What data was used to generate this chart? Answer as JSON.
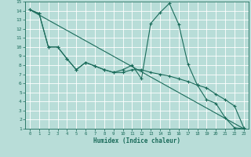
{
  "xlabel": "Humidex (Indice chaleur)",
  "xlim": [
    -0.5,
    23.5
  ],
  "ylim": [
    1,
    15
  ],
  "xticks": [
    0,
    1,
    2,
    3,
    4,
    5,
    6,
    7,
    8,
    9,
    10,
    11,
    12,
    13,
    14,
    15,
    16,
    17,
    18,
    19,
    20,
    21,
    22,
    23
  ],
  "yticks": [
    1,
    2,
    3,
    4,
    5,
    6,
    7,
    8,
    9,
    10,
    11,
    12,
    13,
    14,
    15
  ],
  "bg_color": "#b8ddd8",
  "line_color": "#1a6b5a",
  "grid_color": "#ffffff",
  "line1_x": [
    0,
    1,
    2,
    3,
    4,
    5,
    6,
    7,
    8,
    9,
    10,
    11,
    12,
    13,
    14,
    15,
    16,
    17,
    18,
    19,
    20,
    21,
    22,
    23
  ],
  "line1_y": [
    14.1,
    13.7,
    10.0,
    10.0,
    8.7,
    7.5,
    8.3,
    7.9,
    7.5,
    7.2,
    7.5,
    8.0,
    6.5,
    12.6,
    13.8,
    14.8,
    12.5,
    8.1,
    5.8,
    4.2,
    3.8,
    2.2,
    1.1,
    1.0
  ],
  "line2_x": [
    0,
    1,
    2,
    3,
    4,
    5,
    6,
    7,
    8,
    9,
    10,
    11,
    12,
    13,
    14,
    15,
    16,
    17,
    18,
    19,
    20,
    21,
    22,
    23
  ],
  "line2_y": [
    14.1,
    13.7,
    10.0,
    10.0,
    8.7,
    7.5,
    8.3,
    7.9,
    7.5,
    7.2,
    7.2,
    7.5,
    7.5,
    7.2,
    7.0,
    6.8,
    6.5,
    6.2,
    5.8,
    5.5,
    4.8,
    4.2,
    3.5,
    1.1
  ],
  "line3_x": [
    0,
    23
  ],
  "line3_y": [
    14.1,
    1.0
  ]
}
